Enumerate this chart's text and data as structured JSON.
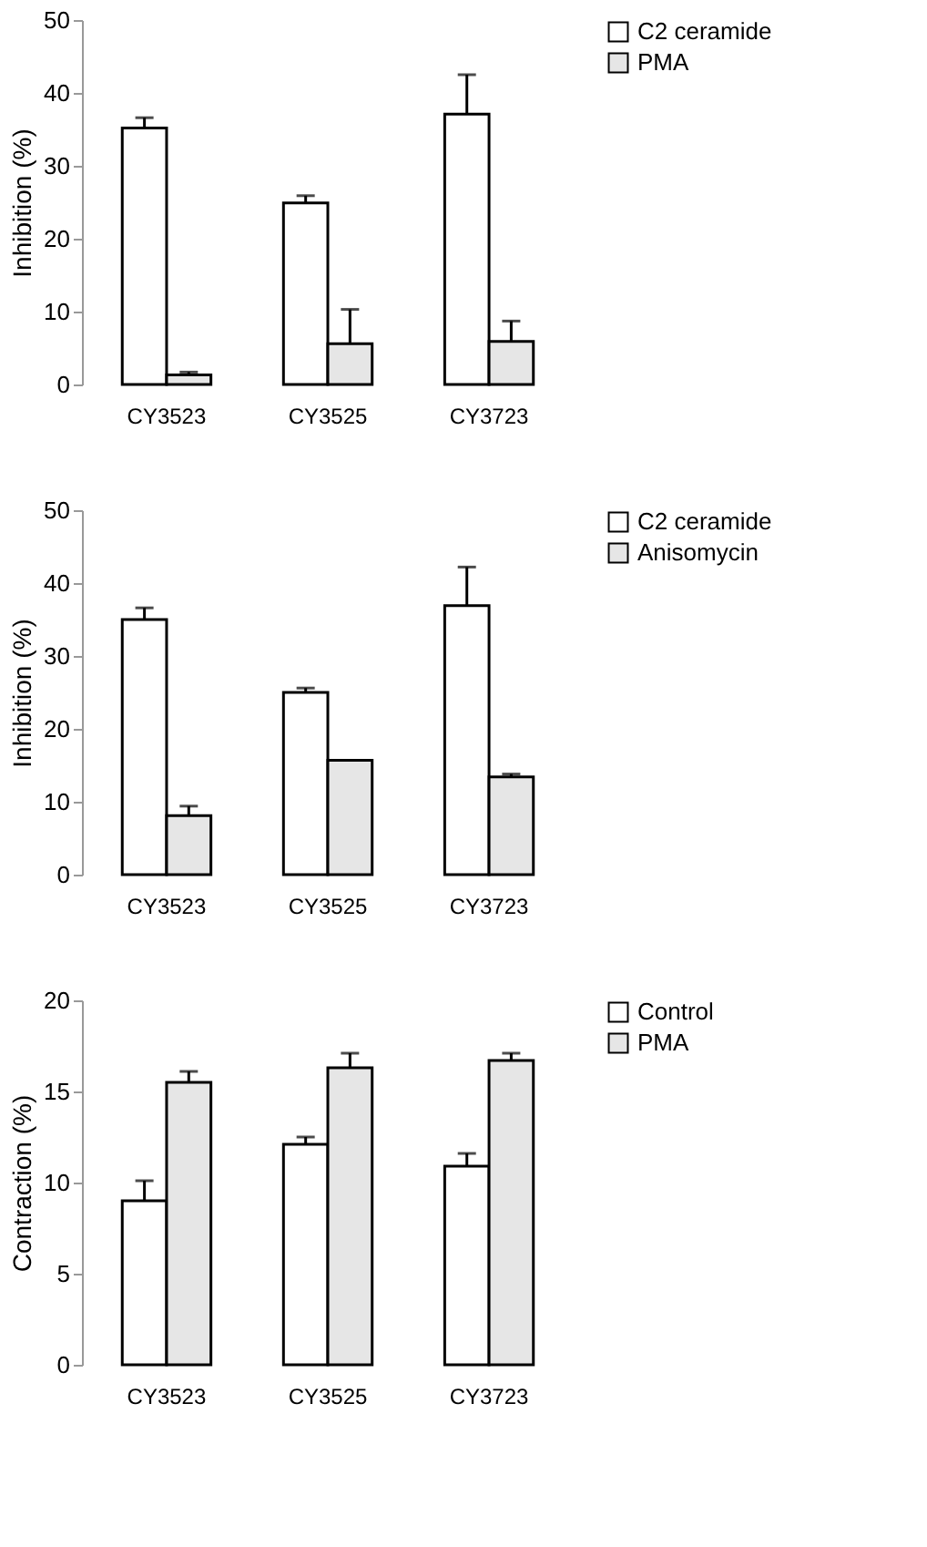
{
  "chart_data": [
    {
      "type": "bar",
      "ylabel": "Inhibition (%)",
      "categories": [
        "CY3523",
        "CY3525",
        "CY3723"
      ],
      "ylim": [
        0,
        50
      ],
      "yticks": [
        0,
        10,
        20,
        30,
        40,
        50
      ],
      "legend": "right",
      "grid": false,
      "series": [
        {
          "name": "C2 ceramide",
          "color": "#ffffff",
          "values": [
            35.2,
            24.9,
            37.1
          ],
          "errors": [
            [
              35.2,
              36.6
            ],
            [
              24.9,
              25.9
            ],
            [
              37.1,
              42.5
            ]
          ]
        },
        {
          "name": "PMA",
          "color": "#e6e6e6",
          "values": [
            1.3,
            5.6,
            5.9
          ],
          "errors": [
            [
              1.3,
              1.7
            ],
            [
              5.6,
              10.3
            ],
            [
              5.9,
              8.7
            ]
          ]
        }
      ]
    },
    {
      "type": "bar",
      "ylabel": "Inhibition (%)",
      "categories": [
        "CY3523",
        "CY3525",
        "CY3723"
      ],
      "ylim": [
        0,
        50
      ],
      "yticks": [
        0,
        10,
        20,
        30,
        40,
        50
      ],
      "legend": "right",
      "grid": false,
      "series": [
        {
          "name": "C2 ceramide",
          "color": "#ffffff",
          "values": [
            35.0,
            25.0,
            36.9
          ],
          "errors": [
            [
              35.0,
              36.6
            ],
            [
              25.0,
              25.6
            ],
            [
              36.9,
              42.2
            ]
          ]
        },
        {
          "name": "Anisomycin",
          "color": "#e6e6e6",
          "values": [
            8.1,
            15.7,
            13.4
          ],
          "errors": [
            [
              8.1,
              9.4
            ],
            null,
            [
              13.4,
              13.8
            ]
          ]
        }
      ]
    },
    {
      "type": "bar",
      "ylabel": "Contraction  (%)",
      "categories": [
        "CY3523",
        "CY3525",
        "CY3723"
      ],
      "ylim": [
        0,
        20
      ],
      "yticks": [
        0,
        5,
        10,
        15,
        20
      ],
      "legend": "right",
      "grid": false,
      "series": [
        {
          "name": "Control",
          "color": "#ffffff",
          "values": [
            9.0,
            12.1,
            10.9
          ],
          "errors": [
            [
              9.0,
              10.1
            ],
            [
              12.1,
              12.5
            ],
            [
              10.9,
              11.6
            ]
          ]
        },
        {
          "name": "PMA",
          "color": "#e6e6e6",
          "values": [
            15.5,
            16.3,
            16.7
          ],
          "errors": [
            [
              15.5,
              16.1
            ],
            [
              16.3,
              17.1
            ],
            [
              16.7,
              17.1
            ]
          ]
        }
      ]
    }
  ]
}
